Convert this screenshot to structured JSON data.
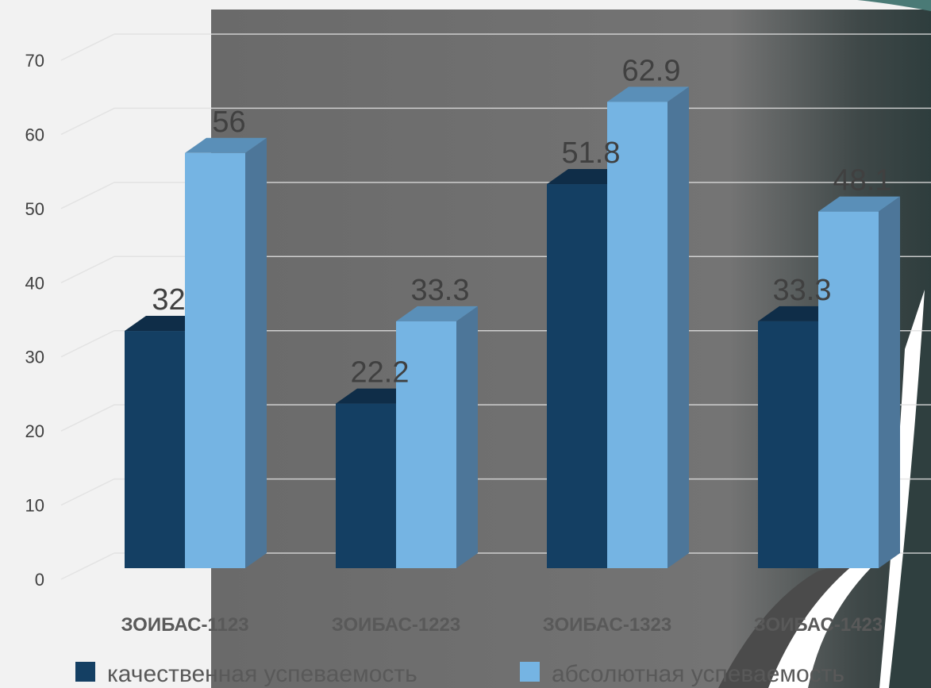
{
  "chart_data": {
    "type": "bar",
    "categories": [
      "ЗОИБАС-1123",
      "ЗОИБАС-1223",
      "ЗОИБАС-1323",
      "ЗОИБАС-1423"
    ],
    "series": [
      {
        "name": "качественная успеваемость",
        "values": [
          32,
          22.2,
          51.8,
          33.3
        ],
        "color": "#143f63"
      },
      {
        "name": "абсолютная успеваемость",
        "values": [
          56,
          33.3,
          62.9,
          48.1
        ],
        "color": "#75b4e3"
      }
    ],
    "value_labels": [
      [
        "32",
        "22.2",
        "51.8",
        "33.3"
      ],
      [
        "56",
        "33.3",
        "62.9",
        "48.1"
      ]
    ],
    "y_ticks": [
      "0",
      "10",
      "20",
      "30",
      "40",
      "50",
      "60",
      "70"
    ],
    "ylim": [
      0,
      70
    ],
    "grid": true,
    "legend_position": "bottom",
    "style": "3d-column"
  }
}
